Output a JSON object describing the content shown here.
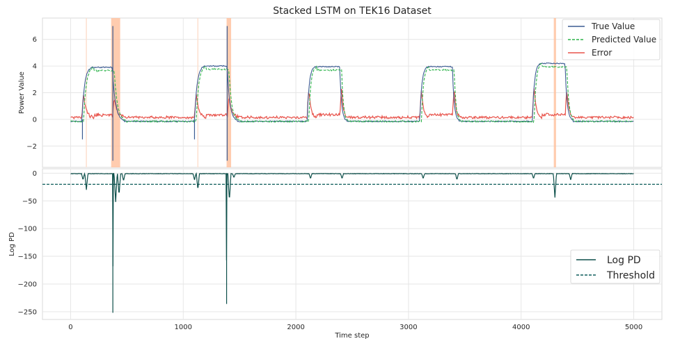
{
  "chart_data": [
    {
      "type": "line",
      "title": "Stacked LSTM on TEK16 Dataset",
      "xlabel": "",
      "ylabel": "Power Value",
      "xlim": [
        -250,
        5250
      ],
      "ylim": [
        -3.6,
        7.6
      ],
      "yticks": [
        -2,
        0,
        2,
        4,
        6
      ],
      "yticklabels": [
        "−2",
        "0",
        "2",
        "4",
        "6"
      ],
      "grid": true,
      "legend_position": "upper right",
      "highlight_regions": [
        [
          360,
          440
        ],
        [
          1385,
          1425
        ],
        [
          4290,
          4310
        ]
      ],
      "faint_lines": [
        140,
        1130
      ],
      "plateaus": [
        {
          "start": 100,
          "rise_end": 190,
          "fall_start": 370,
          "end": 480,
          "level": 3.9
        },
        {
          "start": 1100,
          "rise_end": 1190,
          "fall_start": 1390,
          "end": 1480,
          "level": 4.0
        },
        {
          "start": 2100,
          "rise_end": 2170,
          "fall_start": 2390,
          "end": 2450,
          "level": 3.95
        },
        {
          "start": 3100,
          "rise_end": 3170,
          "fall_start": 3390,
          "end": 3450,
          "level": 3.95
        },
        {
          "start": 4100,
          "rise_end": 4170,
          "fall_start": 4390,
          "end": 4460,
          "level": 4.2
        }
      ],
      "baseline": -0.15,
      "series": [
        {
          "name": "True Value",
          "color": "#3b5b92",
          "style": "solid"
        },
        {
          "name": "Predicted Value",
          "color": "#2cb34a",
          "style": "dashed"
        },
        {
          "name": "Error",
          "color": "#e8524a",
          "style": "solid"
        }
      ],
      "spikes": [
        {
          "x": 375,
          "y": 7.0
        },
        {
          "x": 375,
          "y": -3.1
        },
        {
          "x": 1390,
          "y": 7.0
        },
        {
          "x": 1390,
          "y": -3.1
        },
        {
          "x": 105,
          "y": -1.5
        },
        {
          "x": 1100,
          "y": -1.5
        }
      ]
    },
    {
      "type": "line",
      "title": "",
      "xlabel": "Time step",
      "ylabel": "Log PD",
      "xlim": [
        -250,
        5250
      ],
      "ylim": [
        -264,
        8
      ],
      "xticks": [
        0,
        1000,
        2000,
        3000,
        4000,
        5000
      ],
      "xticklabels": [
        "0",
        "1000",
        "2000",
        "3000",
        "4000",
        "5000"
      ],
      "yticks": [
        0,
        -50,
        -100,
        -150,
        -200,
        -250
      ],
      "yticklabels": [
        "0",
        "−50",
        "−100",
        "−150",
        "−200",
        "−250"
      ],
      "grid": true,
      "legend_position": "lower right",
      "threshold": -20,
      "series": [
        {
          "name": "Log PD",
          "color": "#0d4f4a",
          "style": "solid"
        },
        {
          "name": "Threshold",
          "color": "#0d5c5a",
          "style": "dashed"
        }
      ],
      "dips": [
        {
          "x": 110,
          "y": -12
        },
        {
          "x": 140,
          "y": -30
        },
        {
          "x": 375,
          "y": -252
        },
        {
          "x": 400,
          "y": -52
        },
        {
          "x": 430,
          "y": -40
        },
        {
          "x": 470,
          "y": -14
        },
        {
          "x": 1100,
          "y": -12
        },
        {
          "x": 1130,
          "y": -30
        },
        {
          "x": 1385,
          "y": -236
        },
        {
          "x": 1410,
          "y": -50
        },
        {
          "x": 1450,
          "y": -8
        },
        {
          "x": 2130,
          "y": -10
        },
        {
          "x": 2410,
          "y": -10
        },
        {
          "x": 3130,
          "y": -10
        },
        {
          "x": 3430,
          "y": -12
        },
        {
          "x": 4110,
          "y": -10
        },
        {
          "x": 4300,
          "y": -44
        },
        {
          "x": 4440,
          "y": -12
        }
      ]
    }
  ]
}
